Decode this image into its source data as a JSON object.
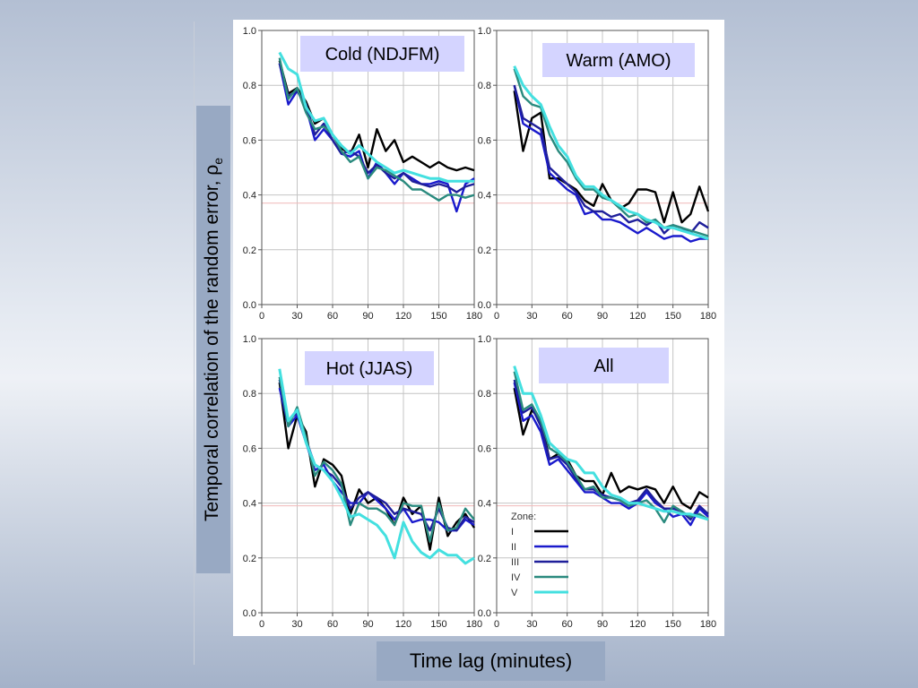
{
  "figure": {
    "ylabel": "Temporal correlation of the random error, ρ",
    "ylabel_subscript": "e",
    "xlabel": "Time lag (minutes)",
    "legend_title": "Zone:"
  },
  "colors": {
    "I": "#000000",
    "II": "#1a1acc",
    "III": "#1f1f9a",
    "IV": "#2a8a7e",
    "V": "#44e0e0",
    "label_box": "#d4d4ff",
    "ref_line": "#f0b8b8"
  },
  "chart_data": [
    {
      "type": "line",
      "title": "Cold (NDJFM)",
      "xlim": [
        0,
        180
      ],
      "ylim": [
        0,
        1
      ],
      "xticks": [
        "0",
        "30",
        "60",
        "90",
        "120",
        "150",
        "180"
      ],
      "yticks": [
        "0.0",
        "0.2",
        "0.4",
        "0.6",
        "0.8",
        "1.0"
      ],
      "reference_line": 0.37,
      "x": [
        15,
        22.5,
        30,
        37.5,
        45,
        52.5,
        60,
        67.5,
        75,
        82.5,
        90,
        97.5,
        105,
        112.5,
        120,
        127.5,
        135,
        142.5,
        150,
        157.5,
        165,
        172.5,
        180
      ],
      "series": [
        {
          "name": "I",
          "values": [
            0.89,
            0.77,
            0.79,
            0.74,
            0.66,
            0.68,
            0.62,
            0.57,
            0.55,
            0.62,
            0.5,
            0.64,
            0.56,
            0.6,
            0.52,
            0.54,
            0.52,
            0.5,
            0.52,
            0.5,
            0.49,
            0.5,
            0.49
          ]
        },
        {
          "name": "II",
          "values": [
            0.88,
            0.73,
            0.78,
            0.72,
            0.6,
            0.64,
            0.6,
            0.55,
            0.54,
            0.56,
            0.46,
            0.52,
            0.48,
            0.44,
            0.48,
            0.46,
            0.44,
            0.44,
            0.45,
            0.44,
            0.34,
            0.44,
            0.46
          ]
        },
        {
          "name": "III",
          "values": [
            0.88,
            0.76,
            0.78,
            0.73,
            0.62,
            0.66,
            0.6,
            0.55,
            0.56,
            0.54,
            0.48,
            0.51,
            0.48,
            0.46,
            0.48,
            0.45,
            0.44,
            0.43,
            0.44,
            0.43,
            0.41,
            0.43,
            0.44
          ]
        },
        {
          "name": "IV",
          "values": [
            0.9,
            0.75,
            0.79,
            0.7,
            0.64,
            0.65,
            0.62,
            0.56,
            0.52,
            0.54,
            0.46,
            0.5,
            0.49,
            0.47,
            0.45,
            0.42,
            0.42,
            0.4,
            0.38,
            0.4,
            0.4,
            0.39,
            0.4
          ]
        },
        {
          "name": "V",
          "values": [
            0.92,
            0.86,
            0.84,
            0.72,
            0.67,
            0.68,
            0.62,
            0.58,
            0.55,
            0.58,
            0.55,
            0.52,
            0.5,
            0.48,
            0.49,
            0.48,
            0.47,
            0.46,
            0.46,
            0.45,
            0.45,
            0.45,
            0.45
          ]
        }
      ]
    },
    {
      "type": "line",
      "title": "Warm (AMO)",
      "xlim": [
        0,
        180
      ],
      "ylim": [
        0,
        1
      ],
      "xticks": [
        "0",
        "30",
        "60",
        "90",
        "120",
        "150",
        "180"
      ],
      "yticks": [
        "0.0",
        "0.2",
        "0.4",
        "0.6",
        "0.8",
        "1.0"
      ],
      "reference_line": 0.37,
      "x": [
        15,
        22.5,
        30,
        37.5,
        45,
        52.5,
        60,
        67.5,
        75,
        82.5,
        90,
        97.5,
        105,
        112.5,
        120,
        127.5,
        135,
        142.5,
        150,
        157.5,
        165,
        172.5,
        180
      ],
      "series": [
        {
          "name": "I",
          "values": [
            0.78,
            0.56,
            0.68,
            0.7,
            0.46,
            0.46,
            0.44,
            0.42,
            0.38,
            0.36,
            0.44,
            0.38,
            0.35,
            0.37,
            0.42,
            0.42,
            0.41,
            0.3,
            0.41,
            0.3,
            0.33,
            0.43,
            0.34
          ]
        },
        {
          "name": "II",
          "values": [
            0.8,
            0.66,
            0.64,
            0.62,
            0.48,
            0.45,
            0.42,
            0.4,
            0.33,
            0.34,
            0.31,
            0.31,
            0.3,
            0.28,
            0.26,
            0.28,
            0.26,
            0.24,
            0.25,
            0.25,
            0.23,
            0.24,
            0.24
          ]
        },
        {
          "name": "III",
          "values": [
            0.8,
            0.68,
            0.66,
            0.64,
            0.5,
            0.47,
            0.44,
            0.41,
            0.36,
            0.34,
            0.34,
            0.32,
            0.33,
            0.3,
            0.31,
            0.29,
            0.31,
            0.26,
            0.29,
            0.28,
            0.26,
            0.3,
            0.28
          ]
        },
        {
          "name": "IV",
          "values": [
            0.86,
            0.76,
            0.73,
            0.72,
            0.62,
            0.56,
            0.52,
            0.46,
            0.42,
            0.42,
            0.39,
            0.38,
            0.35,
            0.32,
            0.33,
            0.3,
            0.31,
            0.28,
            0.29,
            0.28,
            0.27,
            0.26,
            0.25
          ]
        },
        {
          "name": "V",
          "values": [
            0.87,
            0.8,
            0.76,
            0.73,
            0.65,
            0.58,
            0.54,
            0.47,
            0.43,
            0.43,
            0.4,
            0.38,
            0.36,
            0.34,
            0.33,
            0.31,
            0.3,
            0.28,
            0.28,
            0.27,
            0.26,
            0.25,
            0.24
          ]
        }
      ]
    },
    {
      "type": "line",
      "title": "Hot (JJAS)",
      "xlim": [
        0,
        180
      ],
      "ylim": [
        0,
        1
      ],
      "xticks": [
        "0",
        "30",
        "60",
        "90",
        "120",
        "150",
        "180"
      ],
      "yticks": [
        "0.0",
        "0.2",
        "0.4",
        "0.6",
        "0.8",
        "1.0"
      ],
      "reference_line": 0.39,
      "x": [
        15,
        22.5,
        30,
        37.5,
        45,
        52.5,
        60,
        67.5,
        75,
        82.5,
        90,
        97.5,
        105,
        112.5,
        120,
        127.5,
        135,
        142.5,
        150,
        157.5,
        165,
        172.5,
        180
      ],
      "series": [
        {
          "name": "I",
          "values": [
            0.84,
            0.6,
            0.72,
            0.66,
            0.46,
            0.56,
            0.54,
            0.5,
            0.36,
            0.45,
            0.4,
            0.42,
            0.38,
            0.32,
            0.42,
            0.36,
            0.39,
            0.23,
            0.42,
            0.28,
            0.33,
            0.36,
            0.31
          ]
        },
        {
          "name": "II",
          "values": [
            0.82,
            0.68,
            0.72,
            0.62,
            0.52,
            0.54,
            0.48,
            0.44,
            0.4,
            0.4,
            0.44,
            0.41,
            0.38,
            0.34,
            0.38,
            0.33,
            0.34,
            0.34,
            0.33,
            0.3,
            0.3,
            0.34,
            0.32
          ]
        },
        {
          "name": "III",
          "values": [
            0.85,
            0.7,
            0.73,
            0.63,
            0.54,
            0.52,
            0.5,
            0.46,
            0.38,
            0.42,
            0.44,
            0.42,
            0.4,
            0.36,
            0.38,
            0.37,
            0.36,
            0.3,
            0.38,
            0.31,
            0.3,
            0.35,
            0.33
          ]
        },
        {
          "name": "IV",
          "values": [
            0.86,
            0.68,
            0.75,
            0.64,
            0.5,
            0.55,
            0.52,
            0.47,
            0.32,
            0.4,
            0.38,
            0.38,
            0.36,
            0.32,
            0.4,
            0.39,
            0.39,
            0.26,
            0.4,
            0.3,
            0.31,
            0.38,
            0.34
          ]
        },
        {
          "name": "V",
          "values": [
            0.89,
            0.7,
            0.74,
            0.62,
            0.54,
            0.52,
            0.48,
            0.42,
            0.35,
            0.36,
            0.34,
            0.32,
            0.28,
            0.2,
            0.33,
            0.26,
            0.22,
            0.2,
            0.23,
            0.21,
            0.21,
            0.18,
            0.2
          ]
        }
      ]
    },
    {
      "type": "line",
      "title": "All",
      "xlim": [
        0,
        180
      ],
      "ylim": [
        0,
        1
      ],
      "xticks": [
        "0",
        "30",
        "60",
        "90",
        "120",
        "150",
        "180"
      ],
      "yticks": [
        "0.0",
        "0.2",
        "0.4",
        "0.6",
        "0.8",
        "1.0"
      ],
      "reference_line": 0.39,
      "legend_position": "bottom-left",
      "x": [
        15,
        22.5,
        30,
        37.5,
        45,
        52.5,
        60,
        67.5,
        75,
        82.5,
        90,
        97.5,
        105,
        112.5,
        120,
        127.5,
        135,
        142.5,
        150,
        157.5,
        165,
        172.5,
        180
      ],
      "series": [
        {
          "name": "I",
          "values": [
            0.82,
            0.65,
            0.74,
            0.7,
            0.56,
            0.58,
            0.56,
            0.5,
            0.48,
            0.48,
            0.43,
            0.51,
            0.44,
            0.46,
            0.45,
            0.46,
            0.45,
            0.4,
            0.46,
            0.4,
            0.38,
            0.44,
            0.42
          ]
        },
        {
          "name": "II",
          "values": [
            0.84,
            0.7,
            0.72,
            0.66,
            0.54,
            0.56,
            0.52,
            0.48,
            0.44,
            0.44,
            0.42,
            0.4,
            0.4,
            0.38,
            0.4,
            0.44,
            0.4,
            0.38,
            0.35,
            0.36,
            0.32,
            0.38,
            0.35
          ]
        },
        {
          "name": "III",
          "values": [
            0.85,
            0.73,
            0.75,
            0.68,
            0.56,
            0.57,
            0.54,
            0.49,
            0.45,
            0.45,
            0.43,
            0.42,
            0.41,
            0.4,
            0.41,
            0.45,
            0.41,
            0.38,
            0.38,
            0.37,
            0.34,
            0.39,
            0.36
          ]
        },
        {
          "name": "IV",
          "values": [
            0.88,
            0.74,
            0.76,
            0.7,
            0.6,
            0.58,
            0.55,
            0.5,
            0.45,
            0.46,
            0.42,
            0.42,
            0.41,
            0.39,
            0.4,
            0.41,
            0.38,
            0.33,
            0.39,
            0.37,
            0.35,
            0.36,
            0.34
          ]
        },
        {
          "name": "V",
          "values": [
            0.9,
            0.8,
            0.8,
            0.72,
            0.62,
            0.59,
            0.56,
            0.55,
            0.51,
            0.51,
            0.46,
            0.43,
            0.42,
            0.4,
            0.4,
            0.39,
            0.38,
            0.37,
            0.37,
            0.36,
            0.36,
            0.35,
            0.34
          ]
        }
      ]
    }
  ]
}
